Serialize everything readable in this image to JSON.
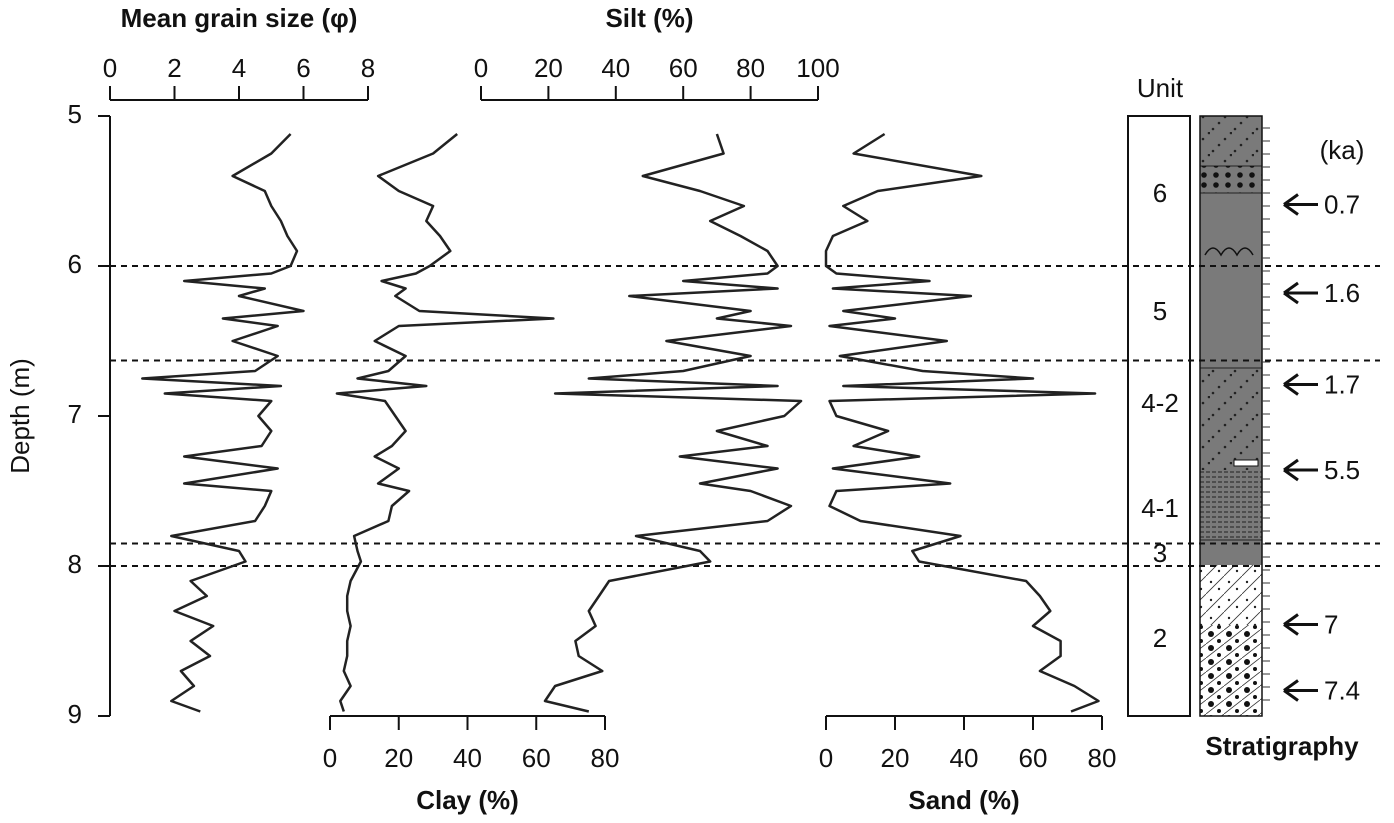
{
  "chart_data": {
    "type": "profile",
    "ylabel": "Depth (m)",
    "ylim": [
      5,
      9
    ],
    "yticks": [
      5,
      6,
      7,
      8,
      9
    ],
    "y": [
      5.12,
      5.25,
      5.4,
      5.5,
      5.6,
      5.7,
      5.8,
      5.9,
      6.0,
      6.05,
      6.1,
      6.15,
      6.2,
      6.3,
      6.35,
      6.4,
      6.5,
      6.6,
      6.7,
      6.75,
      6.8,
      6.85,
      6.9,
      7.0,
      7.1,
      7.2,
      7.27,
      7.35,
      7.45,
      7.5,
      7.6,
      7.7,
      7.8,
      7.9,
      7.97,
      8.1,
      8.2,
      8.3,
      8.4,
      8.5,
      8.6,
      8.7,
      8.8,
      8.9,
      8.97
    ],
    "boundaries": [
      6,
      6.63,
      7.85,
      8
    ],
    "panels": [
      {
        "title": "Mean grain size (φ)",
        "axis_side": "top",
        "color": "#222222",
        "xlim": [
          0,
          8
        ],
        "xticks": [
          0,
          2,
          4,
          6,
          8
        ],
        "values": [
          5.6,
          5.0,
          3.8,
          4.8,
          5.0,
          5.3,
          5.5,
          5.8,
          5.6,
          5.0,
          2.3,
          4.8,
          4.0,
          6.0,
          3.5,
          5.2,
          3.8,
          5.2,
          4.5,
          1.0,
          5.3,
          1.7,
          5.0,
          4.6,
          5.0,
          4.7,
          2.3,
          5.2,
          2.3,
          5.0,
          4.8,
          4.5,
          1.9,
          4.0,
          4.2,
          2.5,
          3.0,
          2.0,
          3.2,
          2.5,
          3.1,
          2.2,
          2.6,
          1.9,
          2.8
        ]
      },
      {
        "title": "Clay (%)",
        "axis_side": "bottom",
        "color": "#222222",
        "xlim": [
          0,
          80
        ],
        "xticks": [
          0,
          20,
          40,
          60,
          80
        ],
        "values": [
          37,
          30,
          14,
          20,
          30,
          28,
          32,
          35,
          29,
          25,
          15,
          22,
          19,
          26,
          65,
          20,
          13,
          22,
          17,
          8,
          28,
          2,
          16,
          19,
          22,
          18,
          13,
          20,
          14,
          23,
          18,
          17,
          7,
          8,
          9,
          6,
          5,
          5,
          6,
          5,
          5,
          4,
          6,
          3,
          4
        ]
      },
      {
        "title": "Silt (%)",
        "axis_side": "top",
        "color": "#222222",
        "xlim": [
          0,
          100
        ],
        "xticks": [
          0,
          20,
          40,
          60,
          80,
          100
        ],
        "values": [
          70,
          72,
          48,
          65,
          78,
          68,
          77,
          85,
          88,
          85,
          60,
          88,
          44,
          80,
          70,
          92,
          55,
          80,
          60,
          32,
          88,
          22,
          95,
          90,
          70,
          85,
          59,
          88,
          65,
          80,
          92,
          85,
          46,
          65,
          68,
          38,
          35,
          32,
          34,
          28,
          29,
          36,
          22,
          19,
          32
        ]
      },
      {
        "title": "Sand (%)",
        "axis_side": "bottom",
        "color": "#222222",
        "xlim": [
          0,
          80
        ],
        "xticks": [
          0,
          20,
          40,
          60,
          80
        ],
        "values": [
          17,
          8,
          45,
          15,
          5,
          12,
          2,
          0,
          0,
          3,
          30,
          2,
          42,
          5,
          20,
          1,
          35,
          4,
          28,
          60,
          5,
          78,
          1,
          3,
          18,
          8,
          27,
          2,
          36,
          3,
          1,
          10,
          39,
          25,
          27,
          58,
          62,
          65,
          60,
          68,
          68,
          62,
          72,
          79,
          71
        ]
      }
    ],
    "stratigraphy": {
      "title": "Stratigraphy",
      "unit_header": "Unit",
      "units": [
        "6",
        "5",
        "4-2",
        "4-1",
        "3",
        "2"
      ],
      "age_header": "(ka)",
      "dates": [
        {
          "depth": 5.59,
          "age": "0.7"
        },
        {
          "depth": 6.18,
          "age": "1.6"
        },
        {
          "depth": 6.79,
          "age": "1.7"
        },
        {
          "depth": 7.36,
          "age": "5.5"
        },
        {
          "depth": 8.39,
          "age": "7"
        },
        {
          "depth": 8.83,
          "age": "7.4"
        }
      ]
    }
  }
}
